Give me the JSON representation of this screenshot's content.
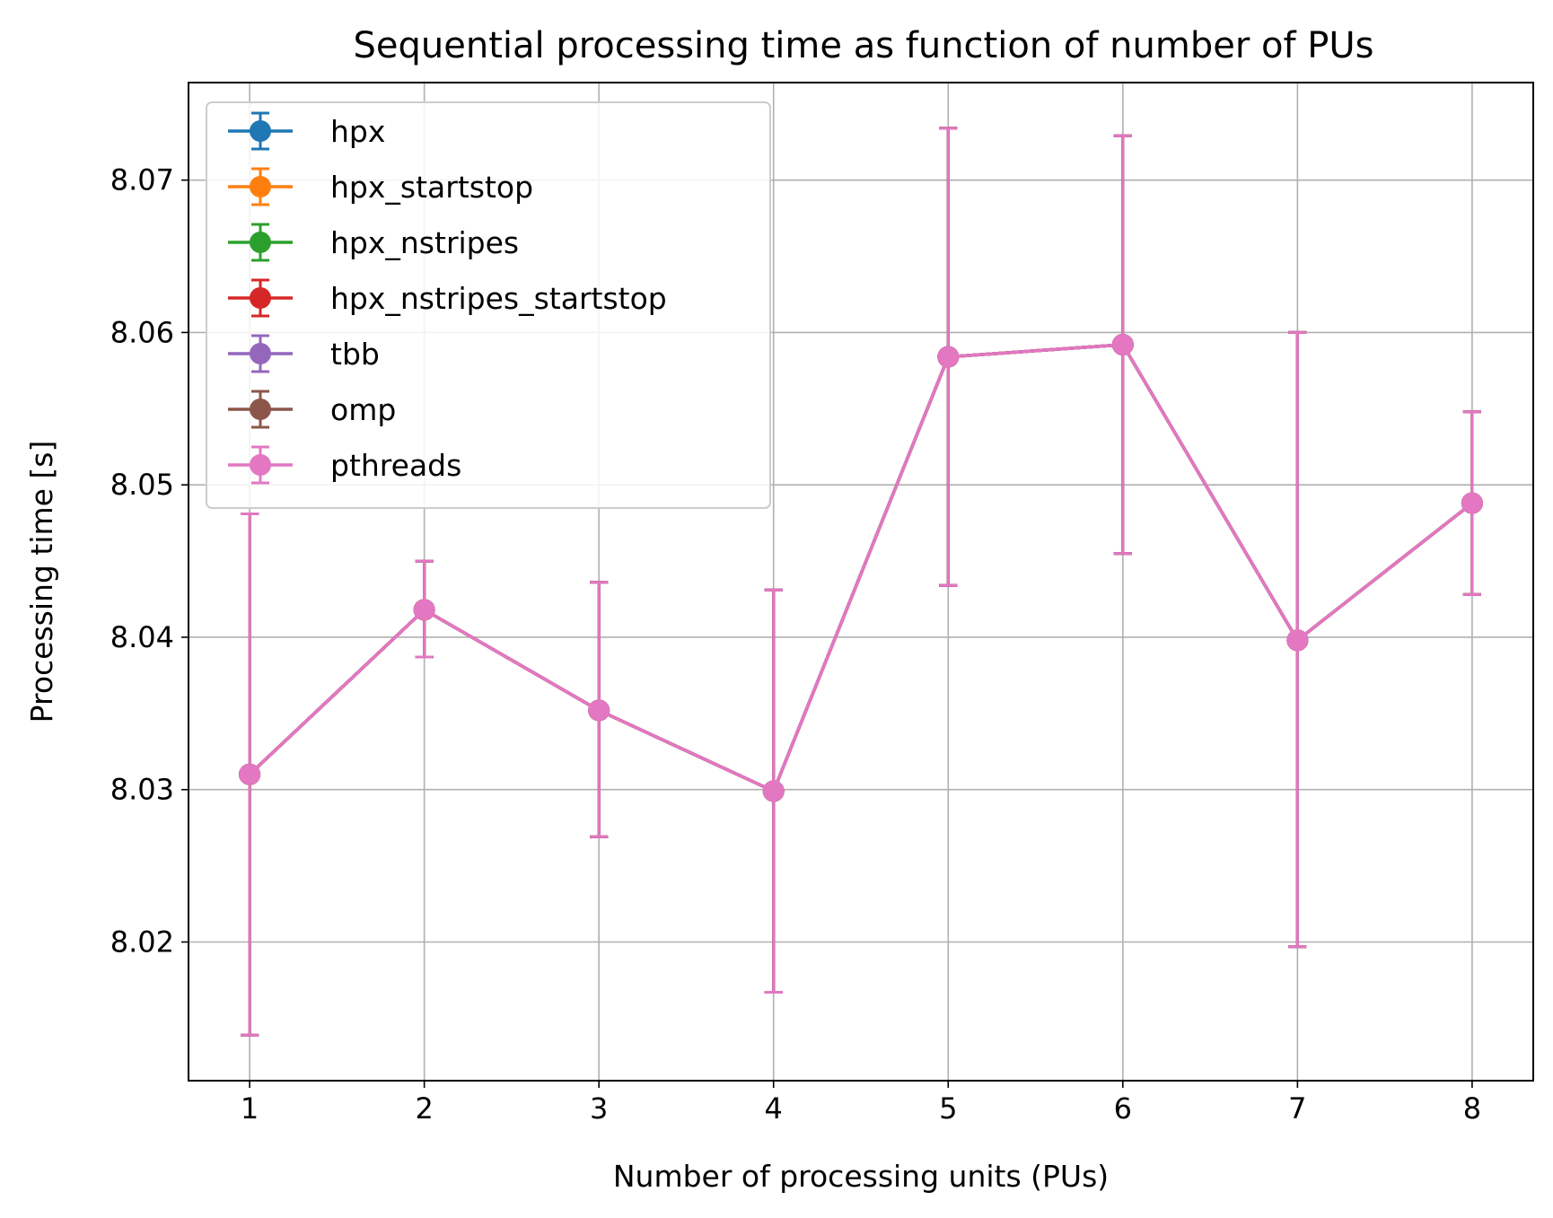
{
  "chart_data": {
    "type": "line",
    "title": "Sequential processing time as function of number of PUs",
    "xlabel": "Number of processing units (PUs)",
    "ylabel": "Processing time [s]",
    "x": [
      1,
      2,
      3,
      4,
      5,
      6,
      7,
      8
    ],
    "xlim": [
      0.65,
      8.35
    ],
    "ylim": [
      8.0109,
      8.0764
    ],
    "xticks": [
      "1",
      "2",
      "3",
      "4",
      "5",
      "6",
      "7",
      "8"
    ],
    "yticks": [
      8.02,
      8.03,
      8.04,
      8.05,
      8.06,
      8.07
    ],
    "ytick_labels": [
      "8.02",
      "8.03",
      "8.04",
      "8.05",
      "8.06",
      "8.07"
    ],
    "grid": true,
    "legend_position": "top-left",
    "error_bars": true,
    "series": [
      {
        "name": "hpx",
        "color": "#1f77b4",
        "values": [
          8.031,
          8.0418,
          8.0352,
          8.0299,
          8.0584,
          8.0592,
          8.0398,
          8.0488
        ],
        "err_low": [
          8.0139,
          8.0387,
          8.0269,
          8.0167,
          8.0434,
          8.0455,
          8.0197,
          8.0428
        ],
        "err_high": [
          8.0481,
          8.045,
          8.0436,
          8.0431,
          8.0734,
          8.0729,
          8.06,
          8.0548
        ]
      },
      {
        "name": "hpx_startstop",
        "color": "#ff7f0e",
        "values": [
          8.031,
          8.0418,
          8.0352,
          8.0299,
          8.0584,
          8.0592,
          8.0398,
          8.0488
        ],
        "err_low": [
          8.0139,
          8.0387,
          8.0269,
          8.0167,
          8.0434,
          8.0455,
          8.0197,
          8.0428
        ],
        "err_high": [
          8.0481,
          8.045,
          8.0436,
          8.0431,
          8.0734,
          8.0729,
          8.06,
          8.0548
        ]
      },
      {
        "name": "hpx_nstripes",
        "color": "#2ca02c",
        "values": [
          8.031,
          8.0418,
          8.0352,
          8.0299,
          8.0584,
          8.0592,
          8.0398,
          8.0488
        ],
        "err_low": [
          8.0139,
          8.0387,
          8.0269,
          8.0167,
          8.0434,
          8.0455,
          8.0197,
          8.0428
        ],
        "err_high": [
          8.0481,
          8.045,
          8.0436,
          8.0431,
          8.0734,
          8.0729,
          8.06,
          8.0548
        ]
      },
      {
        "name": "hpx_nstripes_startstop",
        "color": "#d62728",
        "values": [
          8.031,
          8.0418,
          8.0352,
          8.0299,
          8.0584,
          8.0592,
          8.0398,
          8.0488
        ],
        "err_low": [
          8.0139,
          8.0387,
          8.0269,
          8.0167,
          8.0434,
          8.0455,
          8.0197,
          8.0428
        ],
        "err_high": [
          8.0481,
          8.045,
          8.0436,
          8.0431,
          8.0734,
          8.0729,
          8.06,
          8.0548
        ]
      },
      {
        "name": "tbb",
        "color": "#9467bd",
        "values": [
          8.031,
          8.0418,
          8.0352,
          8.0299,
          8.0584,
          8.0592,
          8.0398,
          8.0488
        ],
        "err_low": [
          8.0139,
          8.0387,
          8.0269,
          8.0167,
          8.0434,
          8.0455,
          8.0197,
          8.0428
        ],
        "err_high": [
          8.0481,
          8.045,
          8.0436,
          8.0431,
          8.0734,
          8.0729,
          8.06,
          8.0548
        ]
      },
      {
        "name": "omp",
        "color": "#8c564b",
        "values": [
          8.031,
          8.0418,
          8.0352,
          8.0299,
          8.0584,
          8.0592,
          8.0398,
          8.0488
        ],
        "err_low": [
          8.0139,
          8.0387,
          8.0269,
          8.0167,
          8.0434,
          8.0455,
          8.0197,
          8.0428
        ],
        "err_high": [
          8.0481,
          8.045,
          8.0436,
          8.0431,
          8.0734,
          8.0729,
          8.06,
          8.0548
        ]
      },
      {
        "name": "pthreads",
        "color": "#e377c2",
        "values": [
          8.031,
          8.0418,
          8.0352,
          8.0299,
          8.0584,
          8.0592,
          8.0398,
          8.0488
        ],
        "err_low": [
          8.0139,
          8.0387,
          8.0269,
          8.0167,
          8.0434,
          8.0455,
          8.0197,
          8.0428
        ],
        "err_high": [
          8.0481,
          8.045,
          8.0436,
          8.0431,
          8.0734,
          8.0729,
          8.06,
          8.0548
        ]
      }
    ]
  }
}
